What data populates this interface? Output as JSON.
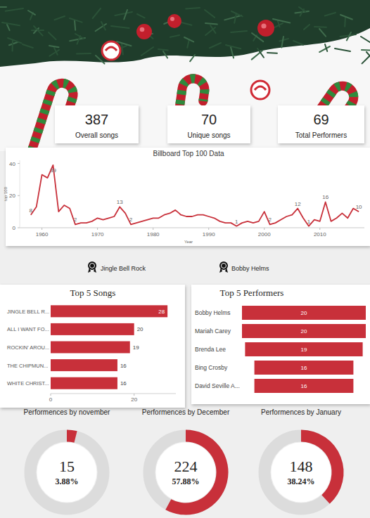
{
  "kpis": [
    {
      "value": 387,
      "label": "Overall songs"
    },
    {
      "value": 70,
      "label": "Unique songs"
    },
    {
      "value": 69,
      "label": "Total Performers"
    }
  ],
  "highlights": {
    "top_song": "Jingle Bell Rock",
    "top_performer": "Bobby Helms"
  },
  "chart_data": [
    {
      "type": "line",
      "title": "Billboard Top 100 Data",
      "xlabel": "Year",
      "ylabel": "top 100",
      "color": "#c8303a",
      "x": [
        1958,
        1959,
        1960,
        1961,
        1962,
        1963,
        1964,
        1965,
        1966,
        1967,
        1968,
        1969,
        1970,
        1971,
        1972,
        1973,
        1974,
        1975,
        1976,
        1977,
        1978,
        1979,
        1980,
        1981,
        1982,
        1983,
        1984,
        1985,
        1986,
        1987,
        1988,
        1989,
        1990,
        1991,
        1992,
        1993,
        1994,
        1995,
        1996,
        1997,
        1998,
        1999,
        2000,
        2001,
        2002,
        2003,
        2004,
        2005,
        2006,
        2007,
        2008,
        2009,
        2010,
        2011,
        2012,
        2013,
        2014,
        2015,
        2016,
        2017
      ],
      "values": [
        8,
        13,
        33,
        31,
        39,
        10,
        14,
        12,
        2,
        3,
        3,
        4,
        6,
        5,
        6,
        7,
        13,
        9,
        2,
        3,
        4,
        5,
        6,
        6,
        8,
        9,
        11,
        8,
        7,
        7,
        8,
        8,
        7,
        6,
        4,
        3,
        3,
        1,
        3,
        4,
        3,
        4,
        10,
        2,
        3,
        5,
        7,
        8,
        12,
        6,
        1,
        5,
        4,
        16,
        4,
        6,
        9,
        6,
        12,
        10
      ],
      "value_labels": [
        "8",
        null,
        null,
        null,
        "39",
        null,
        null,
        null,
        "2",
        null,
        null,
        null,
        null,
        null,
        null,
        null,
        "13",
        null,
        "2",
        null,
        null,
        null,
        null,
        null,
        null,
        null,
        null,
        null,
        null,
        null,
        null,
        null,
        null,
        null,
        null,
        null,
        null,
        "1",
        null,
        null,
        null,
        null,
        null,
        "2",
        null,
        null,
        null,
        null,
        "12",
        null,
        "1",
        null,
        null,
        "16",
        null,
        null,
        null,
        null,
        null,
        "10"
      ],
      "xlim": [
        1956,
        2018
      ],
      "ylim": [
        0,
        42
      ],
      "xticks": [
        1960,
        1970,
        1980,
        1990,
        2000,
        2010
      ],
      "yticks": [
        0,
        20,
        40
      ],
      "grid": false
    },
    {
      "type": "bar",
      "orientation": "horizontal",
      "title": "Top 5 Songs",
      "categories": [
        "JINGLE BELL R...",
        "ALL I WANT FO...",
        "ROCKIN' AROU...",
        "THE CHIPMUN...",
        "WHITE CHRIST..."
      ],
      "values": [
        28,
        20,
        19,
        16,
        16
      ],
      "color": "#c8303a",
      "xlim": [
        0,
        30
      ],
      "xticks": [
        0,
        20
      ],
      "data_labels": true,
      "grid": false
    },
    {
      "type": "funnel",
      "orientation": "horizontal",
      "title": "Top 5 Performers",
      "categories": [
        "Bobby Helms",
        "Mariah Carey",
        "Brenda Lee",
        "Bing Crosby",
        "David Seville A..."
      ],
      "values": [
        20,
        20,
        19,
        16,
        16
      ],
      "color": "#c8303a",
      "data_labels": true
    },
    {
      "type": "donut",
      "title": "Performences by november",
      "value": 15,
      "percent": 3.88,
      "percent_label": "3.88%",
      "color": "#c8303a"
    },
    {
      "type": "donut",
      "title": "Performences by December",
      "value": 224,
      "percent": 57.88,
      "percent_label": "57.88%",
      "color": "#c8303a"
    },
    {
      "type": "donut",
      "title": "Performences by January",
      "value": 148,
      "percent": 38.24,
      "percent_label": "38.24%",
      "color": "#c8303a"
    }
  ]
}
